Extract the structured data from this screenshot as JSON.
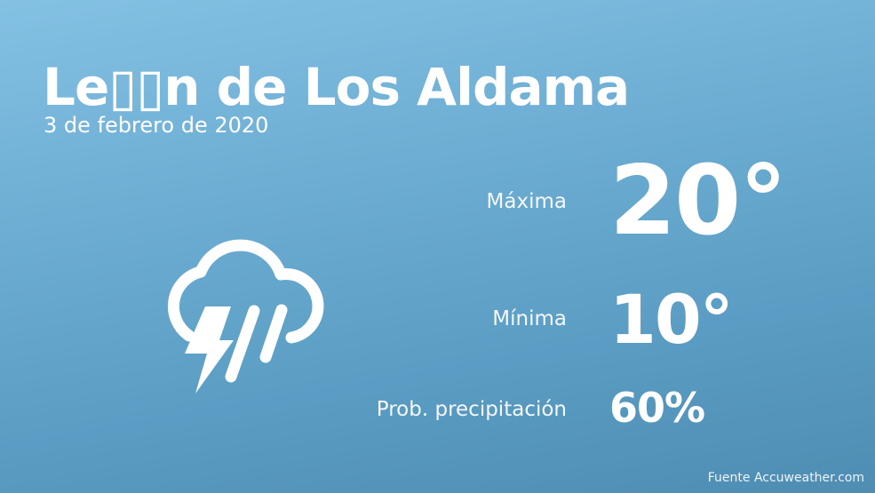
{
  "header": {
    "city": "Le▯▯n de Los Aldama",
    "date": "3 de febrero de 2020"
  },
  "weather": {
    "icon": "thunderstorm-rain-icon",
    "max_label": "Máxima",
    "max_value": "20°",
    "min_label": "Mínima",
    "min_value": "10°",
    "precip_label": "Prob. precipitación",
    "precip_value": "60%"
  },
  "footer": {
    "source": "Fuente Accuweather.com"
  },
  "colors": {
    "background_top": "#84c1e3",
    "background_bottom": "#4f8db3",
    "text": "#ffffff"
  }
}
